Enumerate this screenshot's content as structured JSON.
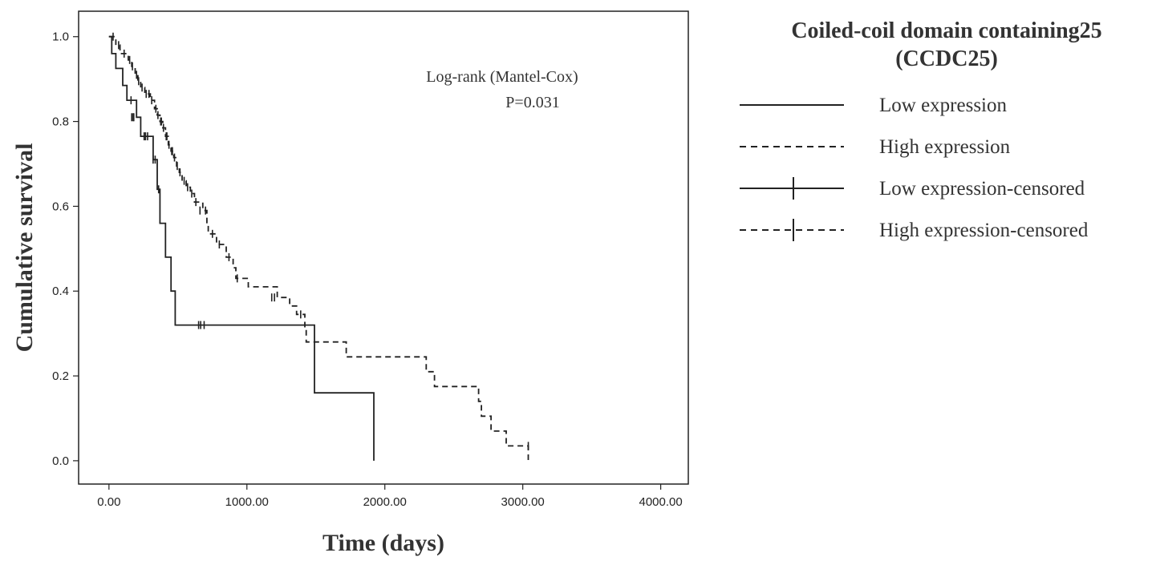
{
  "chart_data": {
    "type": "line",
    "subtype": "kaplan-meier",
    "xlabel": "Time (days)",
    "ylabel": "Cumulative survival",
    "xlim": [
      -220,
      4200
    ],
    "ylim": [
      -0.055,
      1.06
    ],
    "x_ticks": [
      0,
      1000,
      2000,
      3000,
      4000
    ],
    "x_tick_labels": [
      "0.00",
      "1000.00",
      "2000.00",
      "3000.00",
      "4000.00"
    ],
    "y_ticks": [
      0,
      0.2,
      0.4,
      0.6,
      0.8,
      1.0
    ],
    "y_tick_labels": [
      "0.0",
      "0.2",
      "0.4",
      "0.6",
      "0.8",
      "1.0"
    ],
    "grid": false,
    "legend_position": "right",
    "annotation": [
      "Log-rank (Mantel-Cox)",
      "P=0.031"
    ],
    "legend": {
      "title": [
        "Coiled-coil domain containing25",
        "(CCDC25)"
      ],
      "entries": [
        {
          "label": "Low expression",
          "style": "solid",
          "censored_marker": false
        },
        {
          "label": "High expression",
          "style": "dashed",
          "censored_marker": false
        },
        {
          "label": "Low expression-censored",
          "style": "solid",
          "censored_marker": true
        },
        {
          "label": "High expression-censored",
          "style": "dashed",
          "censored_marker": true
        }
      ]
    },
    "series": [
      {
        "name": "Low expression",
        "style": "solid",
        "color": "#222222",
        "steps": [
          [
            0,
            1.0
          ],
          [
            20,
            0.96
          ],
          [
            50,
            0.925
          ],
          [
            100,
            0.885
          ],
          [
            130,
            0.85
          ],
          [
            200,
            0.81
          ],
          [
            230,
            0.765
          ],
          [
            320,
            0.71
          ],
          [
            350,
            0.64
          ],
          [
            370,
            0.56
          ],
          [
            410,
            0.48
          ],
          [
            450,
            0.4
          ],
          [
            480,
            0.32
          ],
          [
            1490,
            0.16
          ],
          [
            1920,
            0.0
          ]
        ],
        "censored": [
          [
            160,
            0.85
          ],
          [
            165,
            0.81
          ],
          [
            175,
            0.81
          ],
          [
            180,
            0.81
          ],
          [
            255,
            0.765
          ],
          [
            265,
            0.765
          ],
          [
            280,
            0.765
          ],
          [
            320,
            0.71
          ],
          [
            335,
            0.71
          ],
          [
            360,
            0.64
          ],
          [
            650,
            0.32
          ],
          [
            665,
            0.32
          ],
          [
            690,
            0.32
          ]
        ]
      },
      {
        "name": "High expression",
        "style": "dashed",
        "color": "#222222",
        "steps": [
          [
            0,
            1.0
          ],
          [
            50,
            0.98
          ],
          [
            80,
            0.96
          ],
          [
            140,
            0.945
          ],
          [
            165,
            0.93
          ],
          [
            190,
            0.91
          ],
          [
            210,
            0.895
          ],
          [
            230,
            0.88
          ],
          [
            260,
            0.865
          ],
          [
            300,
            0.85
          ],
          [
            330,
            0.83
          ],
          [
            350,
            0.815
          ],
          [
            370,
            0.8
          ],
          [
            390,
            0.785
          ],
          [
            410,
            0.765
          ],
          [
            430,
            0.745
          ],
          [
            450,
            0.73
          ],
          [
            470,
            0.715
          ],
          [
            490,
            0.695
          ],
          [
            510,
            0.68
          ],
          [
            530,
            0.66
          ],
          [
            560,
            0.645
          ],
          [
            590,
            0.63
          ],
          [
            620,
            0.61
          ],
          [
            680,
            0.59
          ],
          [
            710,
            0.555
          ],
          [
            720,
            0.535
          ],
          [
            780,
            0.51
          ],
          [
            850,
            0.48
          ],
          [
            900,
            0.455
          ],
          [
            920,
            0.43
          ],
          [
            1010,
            0.41
          ],
          [
            1220,
            0.385
          ],
          [
            1310,
            0.365
          ],
          [
            1360,
            0.345
          ],
          [
            1420,
            0.31
          ],
          [
            1430,
            0.28
          ],
          [
            1720,
            0.245
          ],
          [
            2300,
            0.21
          ],
          [
            2360,
            0.175
          ],
          [
            2680,
            0.14
          ],
          [
            2700,
            0.105
          ],
          [
            2770,
            0.07
          ],
          [
            2880,
            0.035
          ],
          [
            3040,
            0.0
          ]
        ],
        "censored": [
          [
            30,
            1.0
          ],
          [
            70,
            0.98
          ],
          [
            110,
            0.96
          ],
          [
            150,
            0.945
          ],
          [
            170,
            0.93
          ],
          [
            200,
            0.91
          ],
          [
            215,
            0.895
          ],
          [
            240,
            0.88
          ],
          [
            270,
            0.865
          ],
          [
            290,
            0.865
          ],
          [
            310,
            0.85
          ],
          [
            340,
            0.83
          ],
          [
            355,
            0.815
          ],
          [
            375,
            0.8
          ],
          [
            380,
            0.8
          ],
          [
            395,
            0.785
          ],
          [
            415,
            0.765
          ],
          [
            420,
            0.765
          ],
          [
            435,
            0.745
          ],
          [
            455,
            0.73
          ],
          [
            460,
            0.73
          ],
          [
            475,
            0.715
          ],
          [
            495,
            0.695
          ],
          [
            515,
            0.68
          ],
          [
            545,
            0.66
          ],
          [
            570,
            0.645
          ],
          [
            600,
            0.63
          ],
          [
            630,
            0.61
          ],
          [
            660,
            0.59
          ],
          [
            700,
            0.59
          ],
          [
            750,
            0.535
          ],
          [
            800,
            0.51
          ],
          [
            870,
            0.48
          ],
          [
            930,
            0.43
          ],
          [
            1180,
            0.385
          ],
          [
            1200,
            0.385
          ],
          [
            1390,
            0.345
          ],
          [
            3040,
            0.035
          ]
        ]
      }
    ]
  }
}
